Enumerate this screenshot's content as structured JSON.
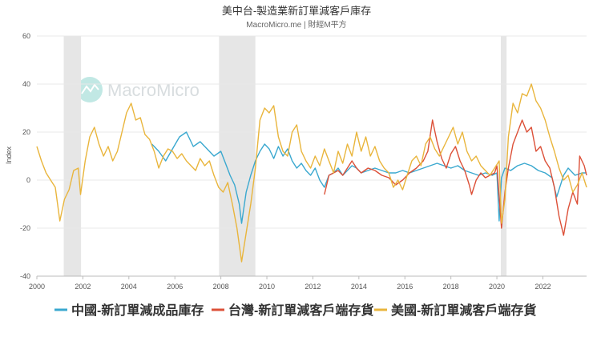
{
  "title": "美中台-製造業新訂單減客戶庫存",
  "subtitle": "MacroMicro.me | 財經M平方",
  "watermark": "MacroMicro",
  "chart_data": {
    "type": "line",
    "ylabel": "Index",
    "ylim": [
      -40,
      60
    ],
    "yticks": [
      -40,
      -20,
      0,
      20,
      40,
      60
    ],
    "xlim": [
      2000.0,
      2023.9
    ],
    "xticks": [
      2000,
      2002,
      2004,
      2006,
      2008,
      2010,
      2012,
      2014,
      2016,
      2018,
      2020,
      2022
    ],
    "grid": true,
    "legend_position": "bottom",
    "recessions": [
      [
        2001.17,
        2001.92
      ],
      [
        2007.92,
        2009.5
      ],
      [
        2020.17,
        2020.42
      ]
    ],
    "series": [
      {
        "name": "中國-新訂單減成品庫存",
        "color": "#3aa8cf",
        "points": [
          [
            2005.0,
            15
          ],
          [
            2005.3,
            12
          ],
          [
            2005.6,
            8
          ],
          [
            2005.9,
            13
          ],
          [
            2006.2,
            18
          ],
          [
            2006.5,
            20
          ],
          [
            2006.8,
            14
          ],
          [
            2007.1,
            16
          ],
          [
            2007.4,
            13
          ],
          [
            2007.7,
            10
          ],
          [
            2008.0,
            12
          ],
          [
            2008.2,
            7
          ],
          [
            2008.4,
            2
          ],
          [
            2008.6,
            -2
          ],
          [
            2008.8,
            -10
          ],
          [
            2008.9,
            -18
          ],
          [
            2009.1,
            -5
          ],
          [
            2009.3,
            2
          ],
          [
            2009.5,
            8
          ],
          [
            2009.7,
            12
          ],
          [
            2009.9,
            15
          ],
          [
            2010.1,
            13
          ],
          [
            2010.3,
            9
          ],
          [
            2010.5,
            14
          ],
          [
            2010.7,
            10
          ],
          [
            2010.9,
            13
          ],
          [
            2011.1,
            8
          ],
          [
            2011.3,
            5
          ],
          [
            2011.5,
            7
          ],
          [
            2011.7,
            4
          ],
          [
            2011.9,
            2
          ],
          [
            2012.1,
            5
          ],
          [
            2012.3,
            0
          ],
          [
            2012.5,
            -3
          ],
          [
            2012.7,
            2
          ],
          [
            2012.9,
            3
          ],
          [
            2013.1,
            5
          ],
          [
            2013.3,
            2
          ],
          [
            2013.5,
            4
          ],
          [
            2013.7,
            6
          ],
          [
            2013.9,
            5
          ],
          [
            2014.1,
            3
          ],
          [
            2014.4,
            4
          ],
          [
            2014.7,
            5
          ],
          [
            2015.0,
            4
          ],
          [
            2015.3,
            3
          ],
          [
            2015.6,
            3
          ],
          [
            2015.9,
            4
          ],
          [
            2016.2,
            3
          ],
          [
            2016.5,
            4
          ],
          [
            2016.8,
            5
          ],
          [
            2017.1,
            6
          ],
          [
            2017.4,
            7
          ],
          [
            2017.7,
            6
          ],
          [
            2018.0,
            5
          ],
          [
            2018.3,
            6
          ],
          [
            2018.6,
            4
          ],
          [
            2018.9,
            3
          ],
          [
            2019.2,
            2
          ],
          [
            2019.5,
            3
          ],
          [
            2019.8,
            2
          ],
          [
            2020.0,
            3
          ],
          [
            2020.1,
            -17
          ],
          [
            2020.2,
            1
          ],
          [
            2020.35,
            5
          ],
          [
            2020.6,
            4
          ],
          [
            2020.9,
            6
          ],
          [
            2021.2,
            7
          ],
          [
            2021.5,
            6
          ],
          [
            2021.8,
            4
          ],
          [
            2022.1,
            3
          ],
          [
            2022.4,
            1
          ],
          [
            2022.6,
            -7
          ],
          [
            2022.9,
            2
          ],
          [
            2023.1,
            5
          ],
          [
            2023.4,
            2
          ],
          [
            2023.7,
            3
          ],
          [
            2023.9,
            3
          ]
        ]
      },
      {
        "name": "台灣-新訂單減客戶端存貨",
        "color": "#dc5038",
        "points": [
          [
            2012.5,
            -6
          ],
          [
            2012.7,
            2
          ],
          [
            2012.9,
            3
          ],
          [
            2013.1,
            4
          ],
          [
            2013.3,
            2
          ],
          [
            2013.5,
            5
          ],
          [
            2013.7,
            8
          ],
          [
            2013.9,
            5
          ],
          [
            2014.1,
            3
          ],
          [
            2014.4,
            5
          ],
          [
            2014.7,
            4
          ],
          [
            2015.0,
            2
          ],
          [
            2015.3,
            1
          ],
          [
            2015.6,
            -2
          ],
          [
            2015.9,
            0
          ],
          [
            2016.2,
            3
          ],
          [
            2016.5,
            5
          ],
          [
            2016.8,
            8
          ],
          [
            2017.0,
            12
          ],
          [
            2017.2,
            25
          ],
          [
            2017.4,
            16
          ],
          [
            2017.6,
            9
          ],
          [
            2017.8,
            5
          ],
          [
            2018.0,
            11
          ],
          [
            2018.2,
            14
          ],
          [
            2018.4,
            8
          ],
          [
            2018.6,
            4
          ],
          [
            2018.8,
            -2
          ],
          [
            2018.9,
            -6
          ],
          [
            2019.1,
            0
          ],
          [
            2019.3,
            3
          ],
          [
            2019.5,
            1
          ],
          [
            2019.7,
            2
          ],
          [
            2019.9,
            3
          ],
          [
            2020.0,
            6
          ],
          [
            2020.2,
            -20
          ],
          [
            2020.35,
            -5
          ],
          [
            2020.5,
            5
          ],
          [
            2020.7,
            15
          ],
          [
            2020.9,
            20
          ],
          [
            2021.1,
            25
          ],
          [
            2021.3,
            20
          ],
          [
            2021.5,
            22
          ],
          [
            2021.7,
            12
          ],
          [
            2021.9,
            14
          ],
          [
            2022.1,
            8
          ],
          [
            2022.3,
            5
          ],
          [
            2022.5,
            -3
          ],
          [
            2022.7,
            -15
          ],
          [
            2022.9,
            -23
          ],
          [
            2023.1,
            -12
          ],
          [
            2023.3,
            -5
          ],
          [
            2023.5,
            -10
          ],
          [
            2023.6,
            10
          ],
          [
            2023.8,
            6
          ],
          [
            2023.9,
            2
          ]
        ]
      },
      {
        "name": "美國-新訂單減客戶端存貨",
        "color": "#e9b53c",
        "points": [
          [
            2000.0,
            14
          ],
          [
            2000.2,
            8
          ],
          [
            2000.4,
            3
          ],
          [
            2000.6,
            0
          ],
          [
            2000.8,
            -3
          ],
          [
            2001.0,
            -17
          ],
          [
            2001.2,
            -8
          ],
          [
            2001.4,
            -4
          ],
          [
            2001.6,
            4
          ],
          [
            2001.8,
            5
          ],
          [
            2001.9,
            -6
          ],
          [
            2002.1,
            8
          ],
          [
            2002.3,
            18
          ],
          [
            2002.5,
            22
          ],
          [
            2002.7,
            15
          ],
          [
            2002.9,
            10
          ],
          [
            2003.1,
            14
          ],
          [
            2003.3,
            8
          ],
          [
            2003.5,
            12
          ],
          [
            2003.7,
            20
          ],
          [
            2003.9,
            28
          ],
          [
            2004.1,
            32
          ],
          [
            2004.3,
            25
          ],
          [
            2004.5,
            26
          ],
          [
            2004.7,
            19
          ],
          [
            2004.9,
            17
          ],
          [
            2005.1,
            12
          ],
          [
            2005.3,
            5
          ],
          [
            2005.5,
            10
          ],
          [
            2005.7,
            13
          ],
          [
            2005.9,
            12
          ],
          [
            2006.1,
            9
          ],
          [
            2006.3,
            11
          ],
          [
            2006.5,
            8
          ],
          [
            2006.7,
            6
          ],
          [
            2006.9,
            4
          ],
          [
            2007.1,
            9
          ],
          [
            2007.3,
            6
          ],
          [
            2007.5,
            8
          ],
          [
            2007.7,
            2
          ],
          [
            2007.9,
            -3
          ],
          [
            2008.1,
            -5
          ],
          [
            2008.3,
            -1
          ],
          [
            2008.5,
            -10
          ],
          [
            2008.7,
            -20
          ],
          [
            2008.9,
            -34
          ],
          [
            2009.1,
            -22
          ],
          [
            2009.3,
            -10
          ],
          [
            2009.5,
            5
          ],
          [
            2009.7,
            25
          ],
          [
            2009.9,
            30
          ],
          [
            2010.1,
            28
          ],
          [
            2010.3,
            31
          ],
          [
            2010.5,
            18
          ],
          [
            2010.7,
            12
          ],
          [
            2010.9,
            10
          ],
          [
            2011.1,
            20
          ],
          [
            2011.3,
            23
          ],
          [
            2011.5,
            12
          ],
          [
            2011.7,
            8
          ],
          [
            2011.9,
            5
          ],
          [
            2012.1,
            10
          ],
          [
            2012.3,
            6
          ],
          [
            2012.5,
            13
          ],
          [
            2012.7,
            8
          ],
          [
            2012.9,
            3
          ],
          [
            2013.1,
            12
          ],
          [
            2013.3,
            7
          ],
          [
            2013.5,
            15
          ],
          [
            2013.7,
            10
          ],
          [
            2013.9,
            20
          ],
          [
            2014.1,
            12
          ],
          [
            2014.3,
            18
          ],
          [
            2014.5,
            10
          ],
          [
            2014.7,
            14
          ],
          [
            2014.9,
            8
          ],
          [
            2015.1,
            5
          ],
          [
            2015.3,
            3
          ],
          [
            2015.5,
            -3
          ],
          [
            2015.7,
            0
          ],
          [
            2015.9,
            -4
          ],
          [
            2016.1,
            2
          ],
          [
            2016.3,
            8
          ],
          [
            2016.5,
            10
          ],
          [
            2016.7,
            6
          ],
          [
            2016.9,
            15
          ],
          [
            2017.1,
            18
          ],
          [
            2017.3,
            13
          ],
          [
            2017.5,
            10
          ],
          [
            2017.7,
            14
          ],
          [
            2017.9,
            18
          ],
          [
            2018.1,
            22
          ],
          [
            2018.3,
            15
          ],
          [
            2018.5,
            20
          ],
          [
            2018.7,
            12
          ],
          [
            2018.9,
            8
          ],
          [
            2019.1,
            10
          ],
          [
            2019.3,
            6
          ],
          [
            2019.5,
            4
          ],
          [
            2019.7,
            2
          ],
          [
            2019.9,
            5
          ],
          [
            2020.1,
            8
          ],
          [
            2020.2,
            -18
          ],
          [
            2020.35,
            -8
          ],
          [
            2020.5,
            18
          ],
          [
            2020.7,
            32
          ],
          [
            2020.9,
            28
          ],
          [
            2021.1,
            36
          ],
          [
            2021.3,
            35
          ],
          [
            2021.5,
            40
          ],
          [
            2021.7,
            33
          ],
          [
            2021.9,
            30
          ],
          [
            2022.1,
            25
          ],
          [
            2022.3,
            18
          ],
          [
            2022.5,
            12
          ],
          [
            2022.7,
            5
          ],
          [
            2022.9,
            0
          ],
          [
            2023.1,
            2
          ],
          [
            2023.3,
            -5
          ],
          [
            2023.5,
            -2
          ],
          [
            2023.7,
            3
          ],
          [
            2023.9,
            -3
          ]
        ]
      }
    ]
  }
}
